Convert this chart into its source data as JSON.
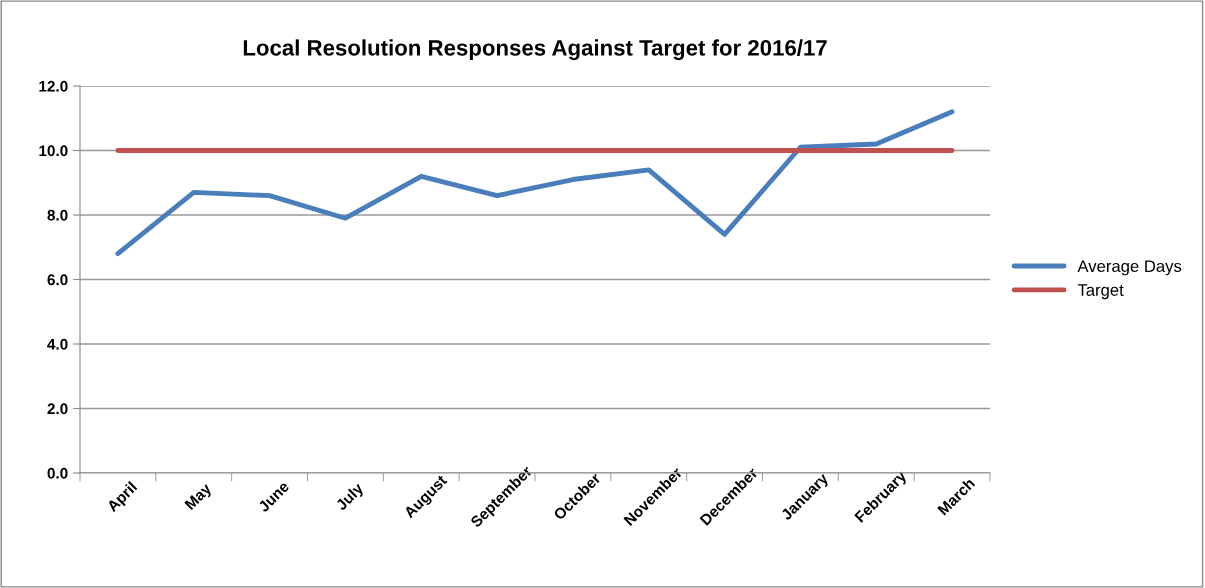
{
  "chart_data": {
    "type": "line",
    "title": "Local Resolution Responses Against Target for 2016/17",
    "categories": [
      "April",
      "May",
      "June",
      "July",
      "August",
      "September",
      "October",
      "November",
      "December",
      "January",
      "February",
      "March"
    ],
    "series": [
      {
        "name": "Average Days",
        "color": "#4a7ebb",
        "values": [
          6.8,
          8.7,
          8.6,
          7.9,
          9.2,
          8.6,
          9.1,
          9.4,
          7.4,
          10.1,
          10.2,
          11.2
        ]
      },
      {
        "name": "Target",
        "color": "#c0504d",
        "values": [
          10,
          10,
          10,
          10,
          10,
          10,
          10,
          10,
          10,
          10,
          10,
          10
        ]
      }
    ],
    "ylim": [
      0,
      12
    ],
    "yticks": [
      {
        "value": 0,
        "label": "0.0"
      },
      {
        "value": 2,
        "label": "2.0"
      },
      {
        "value": 4,
        "label": "4.0"
      },
      {
        "value": 6,
        "label": "6.0"
      },
      {
        "value": 8,
        "label": "8.0"
      },
      {
        "value": 10,
        "label": "10.0"
      },
      {
        "value": 12,
        "label": "12.0"
      }
    ],
    "grid": "y",
    "legend": "right",
    "marker": "none",
    "line_style": "solid"
  }
}
